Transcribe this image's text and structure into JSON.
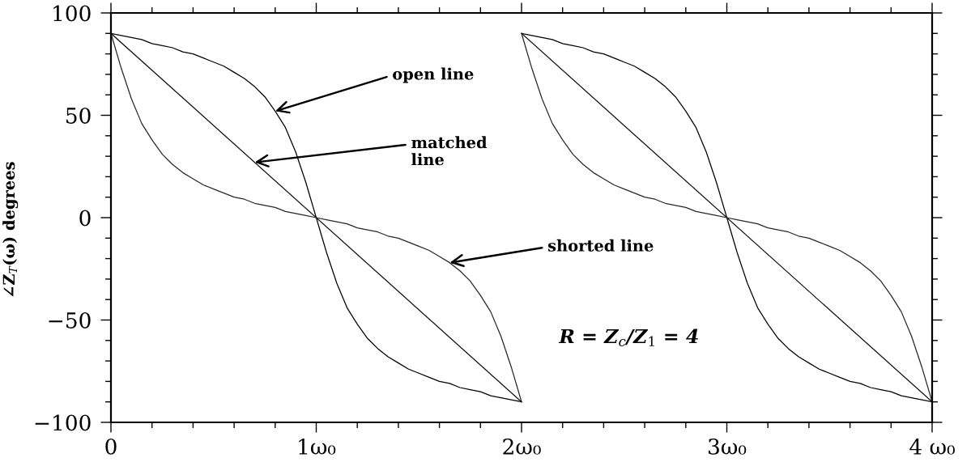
{
  "chart_data": {
    "type": "line",
    "ylabel": "∠Z$_{T}$(ω) degrees",
    "x": [
      0,
      0.05,
      0.1,
      0.15,
      0.2,
      0.25,
      0.3,
      0.35,
      0.4,
      0.45,
      0.5,
      0.55,
      0.6,
      0.65,
      0.7,
      0.75,
      0.8,
      0.85,
      0.9,
      0.95,
      1,
      1.05,
      1.1,
      1.15,
      1.2,
      1.25,
      1.3,
      1.35,
      1.4,
      1.45,
      1.5,
      1.55,
      1.6,
      1.65,
      1.7,
      1.75,
      1.8,
      1.85,
      1.9,
      1.95,
      2,
      null,
      2,
      2.05,
      2.1,
      2.15,
      2.2,
      2.25,
      2.3,
      2.35,
      2.4,
      2.45,
      2.5,
      2.55,
      2.6,
      2.65,
      2.7,
      2.75,
      2.8,
      2.85,
      2.9,
      2.95,
      3,
      3.05,
      3.1,
      3.15,
      3.2,
      3.25,
      3.3,
      3.35,
      3.4,
      3.45,
      3.5,
      3.55,
      3.6,
      3.65,
      3.7,
      3.75,
      3.8,
      3.85,
      3.9,
      3.95,
      4
    ],
    "series": [
      {
        "color": "#000000",
        "values": [
          90,
          89,
          88,
          87,
          85,
          84,
          83,
          81,
          80,
          78,
          76,
          74,
          71,
          68,
          64,
          59,
          52,
          44,
          32,
          17,
          0,
          -17,
          -32,
          -44,
          -52,
          -59,
          -64,
          -68,
          -71,
          -74,
          -76,
          -78,
          -80,
          -81,
          -83,
          -84,
          -85,
          -87,
          -88,
          -89,
          -90,
          null,
          90,
          89,
          88,
          87,
          85,
          84,
          83,
          81,
          80,
          78,
          76,
          74,
          71,
          68,
          64,
          59,
          52,
          44,
          32,
          17,
          0,
          -17,
          -32,
          -44,
          -52,
          -59,
          -64,
          -68,
          -71,
          -74,
          -76,
          -78,
          -80,
          -81,
          -83,
          -84,
          -85,
          -87,
          -88,
          -89,
          -90
        ]
      },
      {
        "color": "#141414",
        "x": [
          0,
          2,
          null,
          2,
          4
        ],
        "values": [
          90,
          -90,
          null,
          90,
          -90
        ]
      },
      {
        "color": "#282828",
        "values": [
          90,
          73,
          58,
          46,
          38,
          31,
          26,
          22,
          19,
          16,
          14,
          12,
          10,
          9,
          7,
          6,
          5,
          3,
          2,
          1,
          0,
          -1,
          -2,
          -3,
          -5,
          -6,
          -7,
          -9,
          -10,
          -12,
          -14,
          -16,
          -19,
          -22,
          -26,
          -31,
          -38,
          -46,
          -58,
          -73,
          -90,
          null,
          90,
          73,
          58,
          46,
          38,
          31,
          26,
          22,
          19,
          16,
          14,
          12,
          10,
          9,
          7,
          6,
          5,
          3,
          2,
          1,
          0,
          -1,
          -2,
          -3,
          -5,
          -6,
          -7,
          -9,
          -10,
          -12,
          -14,
          -16,
          -19,
          -22,
          -26,
          -31,
          -38,
          -46,
          -58,
          -73,
          -90
        ]
      }
    ],
    "xlim": [
      0,
      4
    ],
    "xticks": [
      0,
      {
        "value": 0.2,
        "label": null
      },
      {
        "value": 0.4,
        "label": null
      },
      {
        "value": 0.6,
        "label": null
      },
      {
        "value": 0.8,
        "label": null
      },
      {
        "value": 1,
        "label": "1ω₀"
      },
      {
        "value": 1.2,
        "label": null
      },
      {
        "value": 1.4,
        "label": null
      },
      {
        "value": 1.6,
        "label": null
      },
      {
        "value": 1.8,
        "label": null
      },
      {
        "value": 2,
        "label": "2ω₀"
      },
      {
        "value": 2.2,
        "label": null
      },
      {
        "value": 2.4,
        "label": null
      },
      {
        "value": 2.6,
        "label": null
      },
      {
        "value": 2.8,
        "label": null
      },
      {
        "value": 3,
        "label": "3ω₀"
      },
      {
        "value": 3.2,
        "label": null
      },
      {
        "value": 3.4,
        "label": null
      },
      {
        "value": 3.6,
        "label": null
      },
      {
        "value": 3.8,
        "label": null
      },
      {
        "value": 4,
        "label": "4 ω₀"
      }
    ],
    "ylim": [
      -100,
      100
    ],
    "yticks": [
      {
        "value": -100,
        "label": "−100"
      },
      {
        "value": -90,
        "label": null
      },
      {
        "value": -80,
        "label": null
      },
      {
        "value": -70,
        "label": null
      },
      {
        "value": -60,
        "label": null
      },
      {
        "value": -50,
        "label": "−50"
      },
      {
        "value": -40,
        "label": null
      },
      {
        "value": -30,
        "label": null
      },
      {
        "value": -20,
        "label": null
      },
      {
        "value": -10,
        "label": null
      },
      0,
      {
        "value": 10,
        "label": null
      },
      {
        "value": 20,
        "label": null
      },
      {
        "value": 30,
        "label": null
      },
      {
        "value": 40,
        "label": null
      },
      50,
      {
        "value": 60,
        "label": null
      },
      {
        "value": 70,
        "label": null
      },
      {
        "value": 80,
        "label": null
      },
      {
        "value": 90,
        "label": null
      },
      100
    ],
    "annotations": [
      {
        "text": "open line",
        "x": 0.8,
        "y": 52
      },
      {
        "text": "matched\nline",
        "x": 0.7,
        "y": 27
      },
      {
        "text": "shorted line",
        "x": 1.65,
        "y": -22
      },
      "R = Z$_{c}$/Z$_{1}$ = 4"
    ]
  }
}
